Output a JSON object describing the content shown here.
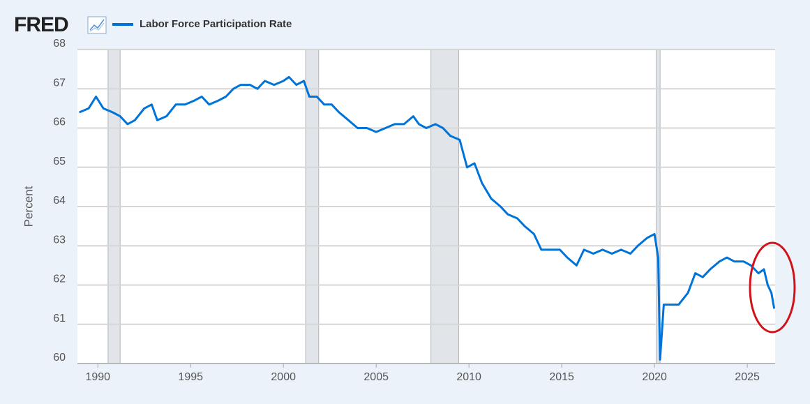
{
  "chart_data": {
    "type": "line",
    "brand": "FRED",
    "ylabel": "Percent",
    "x": [
      1989.0,
      1989.5,
      1989.9,
      1990.3,
      1990.8,
      1991.2,
      1991.6,
      1992.0,
      1992.5,
      1992.9,
      1993.2,
      1993.7,
      1994.2,
      1994.7,
      1995.2,
      1995.6,
      1996.0,
      1996.5,
      1996.9,
      1997.3,
      1997.7,
      1998.2,
      1998.6,
      1999.0,
      1999.5,
      2000.0,
      2000.3,
      2000.7,
      2001.1,
      2001.4,
      2001.8,
      2002.2,
      2002.6,
      2003.0,
      2003.5,
      2004.0,
      2004.5,
      2005.0,
      2005.5,
      2006.0,
      2006.5,
      2007.0,
      2007.3,
      2007.7,
      2008.2,
      2008.6,
      2009.0,
      2009.5,
      2009.9,
      2010.3,
      2010.7,
      2011.2,
      2011.7,
      2012.1,
      2012.6,
      2013.0,
      2013.5,
      2013.9,
      2014.4,
      2014.9,
      2015.3,
      2015.8,
      2016.2,
      2016.7,
      2017.2,
      2017.7,
      2018.2,
      2018.7,
      2019.1,
      2019.6,
      2020.0,
      2020.2,
      2020.3,
      2020.5,
      2020.9,
      2021.3,
      2021.8,
      2022.2,
      2022.6,
      2023.0,
      2023.5,
      2023.9,
      2024.3,
      2024.8,
      2025.2,
      2025.6,
      2025.9,
      2026.1,
      2026.3,
      2026.45
    ],
    "series": [
      {
        "name": "Labor Force Participation Rate",
        "color": "#0073d9",
        "values": [
          66.4,
          66.5,
          66.8,
          66.5,
          66.4,
          66.3,
          66.1,
          66.2,
          66.5,
          66.6,
          66.2,
          66.3,
          66.6,
          66.6,
          66.7,
          66.8,
          66.6,
          66.7,
          66.8,
          67.0,
          67.1,
          67.1,
          67.0,
          67.2,
          67.1,
          67.2,
          67.3,
          67.1,
          67.2,
          66.8,
          66.8,
          66.6,
          66.6,
          66.4,
          66.2,
          66.0,
          66.0,
          65.9,
          66.0,
          66.1,
          66.1,
          66.3,
          66.1,
          66.0,
          66.1,
          66.0,
          65.8,
          65.7,
          65.0,
          65.1,
          64.6,
          64.2,
          64.0,
          63.8,
          63.7,
          63.5,
          63.3,
          62.9,
          62.9,
          62.9,
          62.7,
          62.5,
          62.9,
          62.8,
          62.9,
          62.8,
          62.9,
          62.8,
          63.0,
          63.2,
          63.3,
          62.7,
          60.1,
          61.5,
          61.5,
          61.5,
          61.8,
          62.3,
          62.2,
          62.4,
          62.6,
          62.7,
          62.6,
          62.6,
          62.5,
          62.3,
          62.4,
          62.0,
          61.8,
          61.4
        ]
      }
    ],
    "recessions": [
      [
        1990.55,
        1991.2
      ],
      [
        2001.2,
        2001.9
      ],
      [
        2007.95,
        2009.45
      ],
      [
        2020.1,
        2020.3
      ]
    ],
    "xlim": [
      1988.9,
      2026.5
    ],
    "xticks": [
      1990,
      1995,
      2000,
      2005,
      2010,
      2015,
      2020,
      2025
    ],
    "ylim": [
      60,
      68
    ],
    "yticks": [
      60,
      61,
      62,
      63,
      64,
      65,
      66,
      67,
      68
    ],
    "grid": true
  }
}
